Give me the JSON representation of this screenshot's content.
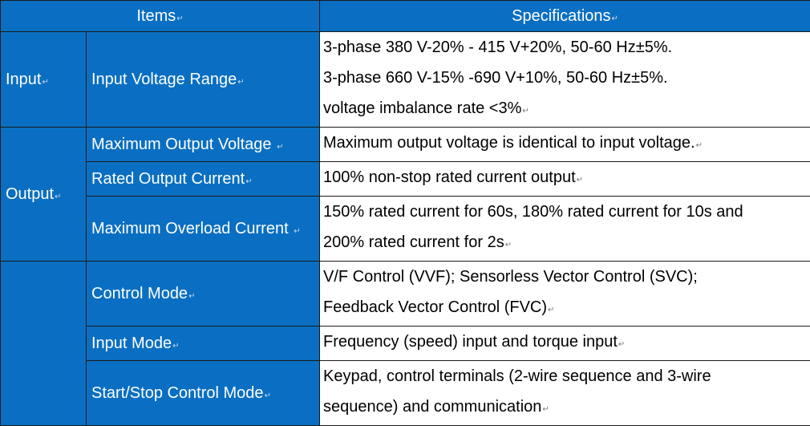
{
  "header": {
    "items_label": "Items",
    "specs_label": "Specifications"
  },
  "para_mark": "↵",
  "groups": {
    "input": {
      "label": "Input",
      "rows": {
        "voltage_range": {
          "item": "Input Voltage Range",
          "spec": [
            "3-phase 380 V-20% - 415 V+20%, 50-60 Hz±5%.",
            "3-phase 660 V-15% -690 V+10%, 50-60 Hz±5%.",
            "voltage imbalance rate <3%"
          ]
        }
      }
    },
    "output": {
      "label": "Output",
      "rows": {
        "max_voltage": {
          "item": "Maximum Output Voltage",
          "spec": [
            "Maximum output voltage is identical to input voltage."
          ]
        },
        "rated_current": {
          "item": "Rated Output Current",
          "spec": [
            "100% non-stop rated current output"
          ]
        },
        "max_overload": {
          "item": "Maximum Overload Current",
          "spec": [
            "150% rated current for 60s, 180% rated current for 10s and",
            "200% rated current for 2s"
          ]
        }
      }
    },
    "control": {
      "label": "",
      "rows": {
        "control_mode": {
          "item": "Control Mode",
          "spec": [
            "V/F Control (VVF); Sensorless Vector Control (SVC);",
            "Feedback Vector Control (FVC)"
          ]
        },
        "input_mode": {
          "item": "Input Mode",
          "spec": [
            "Frequency (speed) input and torque input"
          ]
        },
        "start_stop": {
          "item": "Start/Stop Control Mode",
          "spec": [
            "Keypad, control terminals (2-wire sequence and 3-wire",
            "sequence) and communication"
          ]
        }
      }
    }
  }
}
